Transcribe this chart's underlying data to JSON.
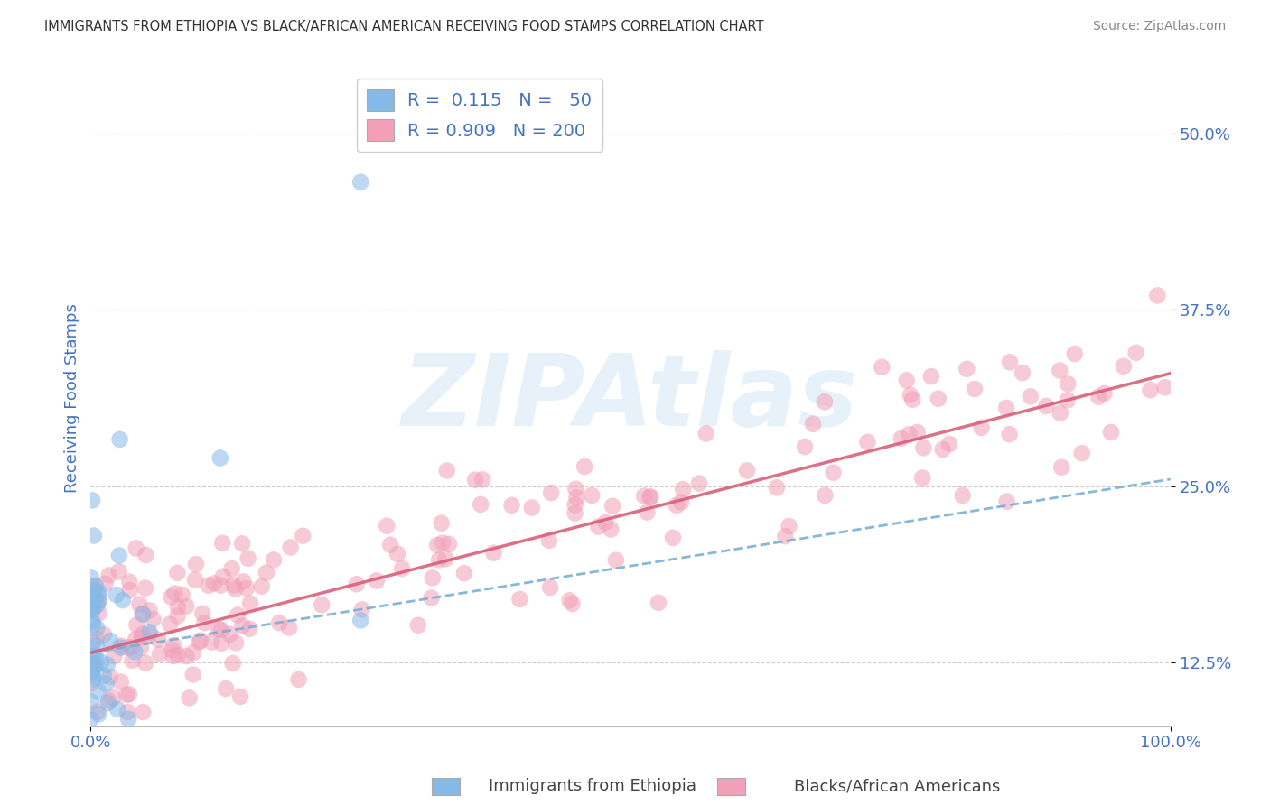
{
  "title": "IMMIGRANTS FROM ETHIOPIA VS BLACK/AFRICAN AMERICAN RECEIVING FOOD STAMPS CORRELATION CHART",
  "source": "Source: ZipAtlas.com",
  "ylabel": "Receiving Food Stamps",
  "watermark": "ZIPAtlas",
  "xlim": [
    0.0,
    1.0
  ],
  "ylim": [
    0.08,
    0.545
  ],
  "xtick_positions": [
    0.0,
    1.0
  ],
  "xtick_labels": [
    "0.0%",
    "100.0%"
  ],
  "ytick_values": [
    0.125,
    0.25,
    0.375,
    0.5
  ],
  "ytick_labels": [
    "12.5%",
    "25.0%",
    "37.5%",
    "50.0%"
  ],
  "legend_line1": "R =  0.115   N =   50",
  "legend_line2": "R = 0.909   N = 200",
  "color_blue_dot": "#85B9E8",
  "color_pink_dot": "#F2A0B8",
  "color_blue_text": "#4472C4",
  "color_blue_line": "#7BAFD4",
  "color_pink_line": "#D9607A",
  "grid_color": "#CCCCCC",
  "blue_line_start_y": 0.132,
  "blue_line_end_y": 0.255,
  "pink_line_start_y": 0.132,
  "pink_line_end_y": 0.33
}
